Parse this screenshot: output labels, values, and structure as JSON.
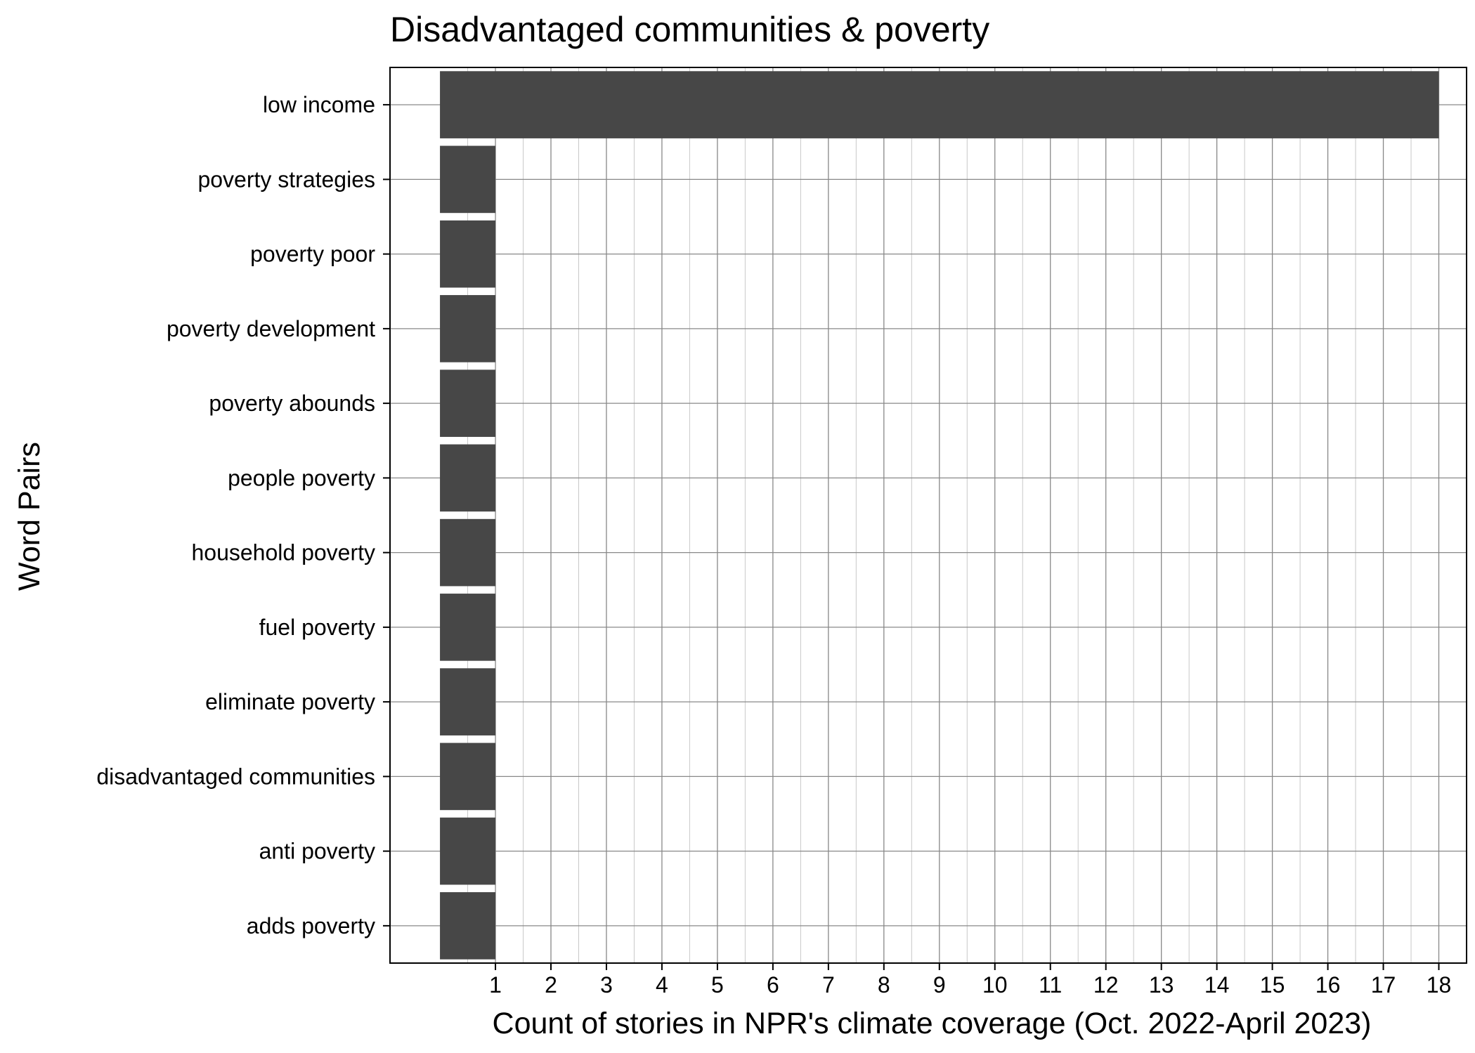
{
  "chart_data": {
    "type": "bar",
    "orientation": "horizontal",
    "title": "Disadvantaged communities & poverty",
    "xlabel": "Count of stories in NPR's climate coverage (Oct. 2022-April 2023)",
    "ylabel": "Word Pairs",
    "categories": [
      "low income",
      "poverty strategies",
      "poverty poor",
      "poverty development",
      "poverty abounds",
      "people poverty",
      "household poverty",
      "fuel poverty",
      "eliminate poverty",
      "disadvantaged communities",
      "anti poverty",
      "adds poverty"
    ],
    "values": [
      18,
      1,
      1,
      1,
      1,
      1,
      1,
      1,
      1,
      1,
      1,
      1
    ],
    "xlim": [
      -0.9,
      18.5
    ],
    "xticks": [
      "1",
      "2",
      "3",
      "4",
      "5",
      "6",
      "7",
      "8",
      "9",
      "10",
      "11",
      "12",
      "13",
      "14",
      "15",
      "16",
      "17",
      "18"
    ],
    "grid": true,
    "bar_color": "#474747",
    "grid_color": "#888888"
  }
}
